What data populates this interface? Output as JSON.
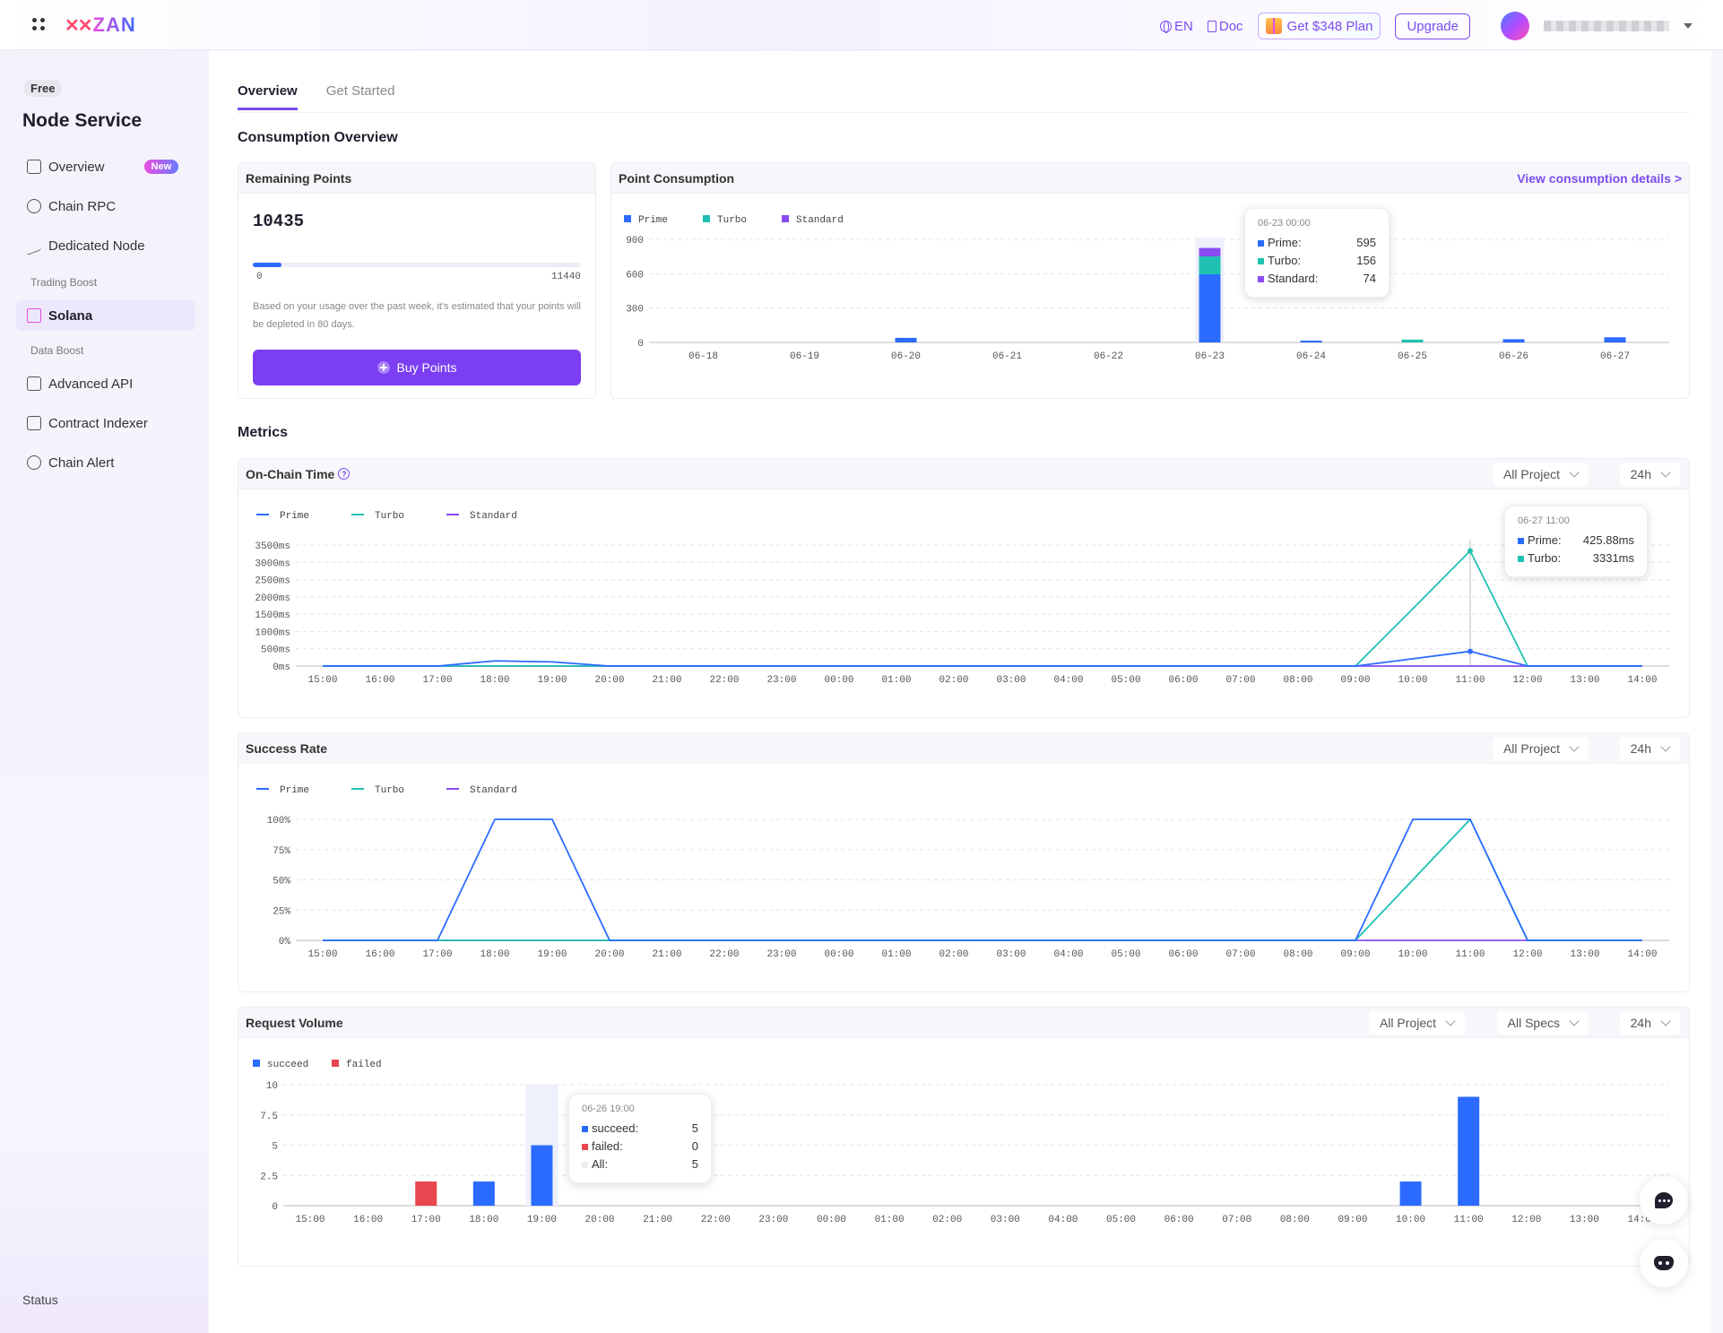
{
  "header": {
    "logo_text": "ZAN",
    "lang": "EN",
    "doc": "Doc",
    "plan_button": "Get $348 Plan",
    "upgrade_button": "Upgrade"
  },
  "sidebar": {
    "badge": "Free",
    "title": "Node Service",
    "items": [
      {
        "label": "Overview",
        "badge": "New",
        "icon": "chart-icon"
      },
      {
        "label": "Chain RPC",
        "icon": "network-icon"
      },
      {
        "label": "Dedicated Node",
        "icon": "pulse-icon"
      }
    ],
    "group_trading": "Trading Boost",
    "solana": "Solana",
    "group_data": "Data Boost",
    "items2": [
      {
        "label": "Advanced API",
        "icon": "cube-icon"
      },
      {
        "label": "Contract Indexer",
        "icon": "code-icon"
      },
      {
        "label": "Chain Alert",
        "icon": "alert-icon"
      }
    ],
    "status": "Status"
  },
  "tabs": [
    "Overview",
    "Get Started"
  ],
  "consumption_title": "Consumption Overview",
  "remaining": {
    "title": "Remaining Points",
    "value": "10435",
    "min": "0",
    "max": "11440",
    "progress_fraction": 0.088,
    "note": "Based on your usage over the past week, it's estimated that your points will be depleted in 80 days.",
    "buy_button": "Buy Points"
  },
  "point_consumption": {
    "title": "Point Consumption",
    "link": "View consumption details >",
    "tooltip": {
      "title": "06-23 00:00",
      "rows": [
        {
          "label": "Prime:",
          "value": "595"
        },
        {
          "label": "Turbo:",
          "value": "156"
        },
        {
          "label": "Standard:",
          "value": "74"
        }
      ]
    }
  },
  "metrics_title": "Metrics",
  "onchain": {
    "title": "On-Chain Time",
    "select1": "All Project",
    "select2": "24h",
    "tooltip": {
      "title": "06-27 11:00",
      "rows": [
        {
          "label": "Prime:",
          "value": "425.88ms"
        },
        {
          "label": "Turbo:",
          "value": "3331ms"
        }
      ]
    }
  },
  "success": {
    "title": "Success Rate",
    "select1": "All Project",
    "select2": "24h"
  },
  "request": {
    "title": "Request Volume",
    "select1": "All Project",
    "select2": "All Specs",
    "select3": "24h",
    "tooltip": {
      "title": "06-26 19:00",
      "rows": [
        {
          "label": "succeed:",
          "value": "5"
        },
        {
          "label": "failed:",
          "value": "0"
        },
        {
          "label": "All:",
          "value": "5"
        }
      ]
    }
  },
  "colors": {
    "prime": "#2c6bff",
    "turbo": "#1fc2b0",
    "standard": "#8a4cf0",
    "failed": "#e8474f",
    "accent": "#7b3ef2"
  },
  "chart_data": [
    {
      "type": "bar",
      "title": "Point Consumption",
      "categories": [
        "06-18",
        "06-19",
        "06-20",
        "06-21",
        "06-22",
        "06-23",
        "06-24",
        "06-25",
        "06-26",
        "06-27"
      ],
      "series": [
        {
          "name": "Prime",
          "values": [
            0,
            0,
            40,
            0,
            0,
            595,
            5,
            0,
            28,
            45
          ]
        },
        {
          "name": "Turbo",
          "values": [
            0,
            0,
            0,
            0,
            0,
            156,
            0,
            25,
            0,
            0
          ]
        },
        {
          "name": "Standard",
          "values": [
            0,
            0,
            0,
            0,
            0,
            74,
            0,
            0,
            0,
            0
          ]
        }
      ],
      "yticks": [
        "0",
        "300",
        "600",
        "900"
      ],
      "ylim": [
        0,
        900
      ],
      "stacked": true,
      "legend": "top-left"
    },
    {
      "type": "line",
      "title": "On-Chain Time",
      "x": [
        "15:00",
        "16:00",
        "17:00",
        "18:00",
        "19:00",
        "20:00",
        "21:00",
        "22:00",
        "23:00",
        "00:00",
        "01:00",
        "02:00",
        "03:00",
        "04:00",
        "05:00",
        "06:00",
        "07:00",
        "08:00",
        "09:00",
        "10:00",
        "11:00",
        "12:00",
        "13:00",
        "14:00"
      ],
      "series": [
        {
          "name": "Prime",
          "values": [
            0,
            0,
            0,
            150,
            120,
            0,
            0,
            0,
            0,
            0,
            0,
            0,
            0,
            0,
            0,
            0,
            0,
            0,
            0,
            210,
            425.88,
            0,
            0,
            0
          ]
        },
        {
          "name": "Turbo",
          "values": [
            0,
            0,
            0,
            0,
            0,
            0,
            0,
            0,
            0,
            0,
            0,
            0,
            0,
            0,
            0,
            0,
            0,
            0,
            0,
            1660,
            3331,
            0,
            0,
            0
          ]
        },
        {
          "name": "Standard",
          "values": [
            0,
            0,
            0,
            0,
            0,
            0,
            0,
            0,
            0,
            0,
            0,
            0,
            0,
            0,
            0,
            0,
            0,
            0,
            0,
            0,
            0,
            0,
            0,
            0
          ]
        }
      ],
      "yticks": [
        "0ms",
        "500ms",
        "1000ms",
        "1500ms",
        "2000ms",
        "2500ms",
        "3000ms",
        "3500ms"
      ],
      "ylim": [
        0,
        3500
      ],
      "legend": "top-left"
    },
    {
      "type": "line",
      "title": "Success Rate",
      "x": [
        "15:00",
        "16:00",
        "17:00",
        "18:00",
        "19:00",
        "20:00",
        "21:00",
        "22:00",
        "23:00",
        "00:00",
        "01:00",
        "02:00",
        "03:00",
        "04:00",
        "05:00",
        "06:00",
        "07:00",
        "08:00",
        "09:00",
        "10:00",
        "11:00",
        "12:00",
        "13:00",
        "14:00"
      ],
      "series": [
        {
          "name": "Prime",
          "values": [
            0,
            0,
            0,
            100,
            100,
            0,
            0,
            0,
            0,
            0,
            0,
            0,
            0,
            0,
            0,
            0,
            0,
            0,
            0,
            100,
            100,
            0,
            0,
            0
          ]
        },
        {
          "name": "Turbo",
          "values": [
            0,
            0,
            0,
            0,
            0,
            0,
            0,
            0,
            0,
            0,
            0,
            0,
            0,
            0,
            0,
            0,
            0,
            0,
            0,
            50,
            100,
            0,
            0,
            0
          ]
        },
        {
          "name": "Standard",
          "values": [
            0,
            0,
            0,
            0,
            0,
            0,
            0,
            0,
            0,
            0,
            0,
            0,
            0,
            0,
            0,
            0,
            0,
            0,
            0,
            0,
            0,
            0,
            0,
            0
          ]
        }
      ],
      "yticks": [
        "0%",
        "25%",
        "50%",
        "75%",
        "100%"
      ],
      "ylim": [
        0,
        100
      ],
      "legend": "top-left"
    },
    {
      "type": "bar",
      "title": "Request Volume",
      "categories": [
        "15:00",
        "16:00",
        "17:00",
        "18:00",
        "19:00",
        "20:00",
        "21:00",
        "22:00",
        "23:00",
        "00:00",
        "01:00",
        "02:00",
        "03:00",
        "04:00",
        "05:00",
        "06:00",
        "07:00",
        "08:00",
        "09:00",
        "10:00",
        "11:00",
        "12:00",
        "13:00",
        "14:00"
      ],
      "series": [
        {
          "name": "succeed",
          "values": [
            0,
            0,
            0,
            2,
            5,
            0,
            0,
            0,
            0,
            0,
            0,
            0,
            0,
            0,
            0,
            0,
            0,
            0,
            0,
            2,
            9,
            0,
            0,
            0
          ]
        },
        {
          "name": "failed",
          "values": [
            0,
            0,
            2,
            0,
            0,
            0,
            0,
            0,
            0,
            0,
            0,
            0,
            0,
            0,
            0,
            0,
            0,
            0,
            0,
            0,
            0,
            0,
            0,
            0
          ]
        }
      ],
      "yticks": [
        "0",
        "2.5",
        "5",
        "7.5",
        "10"
      ],
      "ylim": [
        0,
        10
      ],
      "legend": "top-left"
    }
  ]
}
